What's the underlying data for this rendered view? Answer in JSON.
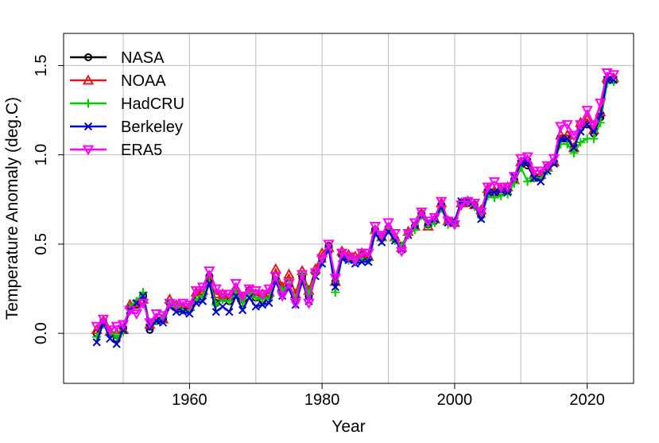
{
  "chart_data": {
    "type": "line",
    "title": "",
    "xlabel": "Year",
    "ylabel": "Temperature Anomaly (deg.C)",
    "xlim": [
      1941,
      2027
    ],
    "ylim": [
      -0.28,
      1.68
    ],
    "xticks": [
      1960,
      1980,
      2000,
      2020
    ],
    "yticks": [
      0.0,
      0.5,
      1.0,
      1.5
    ],
    "xtick_labels": [
      "1960",
      "1980",
      "2000",
      "2020"
    ],
    "ytick_labels": [
      "0.0",
      "0.5",
      "1.0",
      "1.5"
    ],
    "grid": true,
    "legend_position": "top-left",
    "x": [
      1946,
      1947,
      1948,
      1949,
      1950,
      1951,
      1952,
      1953,
      1954,
      1955,
      1956,
      1957,
      1958,
      1959,
      1960,
      1961,
      1962,
      1963,
      1964,
      1965,
      1966,
      1967,
      1968,
      1969,
      1970,
      1971,
      1972,
      1973,
      1974,
      1975,
      1976,
      1977,
      1978,
      1979,
      1980,
      1981,
      1982,
      1983,
      1984,
      1985,
      1986,
      1987,
      1988,
      1989,
      1990,
      1991,
      1992,
      1993,
      1994,
      1995,
      1996,
      1997,
      1998,
      1999,
      2000,
      2001,
      2002,
      2003,
      2004,
      2005,
      2006,
      2007,
      2008,
      2009,
      2010,
      2011,
      2012,
      2013,
      2014,
      2015,
      2016,
      2017,
      2018,
      2019,
      2020,
      2021,
      2022,
      2023,
      2024
    ],
    "series": [
      {
        "name": "NASA",
        "color": "#000000",
        "marker": "circle",
        "values": [
          0.0,
          0.06,
          0.0,
          -0.03,
          0.03,
          0.14,
          0.16,
          0.21,
          0.02,
          0.07,
          0.08,
          0.17,
          0.15,
          0.14,
          0.14,
          0.21,
          0.22,
          0.32,
          0.17,
          0.2,
          0.18,
          0.24,
          0.17,
          0.24,
          0.2,
          0.19,
          0.21,
          0.32,
          0.24,
          0.28,
          0.18,
          0.32,
          0.21,
          0.34,
          0.42,
          0.49,
          0.29,
          0.44,
          0.42,
          0.41,
          0.44,
          0.42,
          0.58,
          0.54,
          0.59,
          0.53,
          0.49,
          0.56,
          0.6,
          0.67,
          0.61,
          0.63,
          0.72,
          0.63,
          0.62,
          0.73,
          0.73,
          0.72,
          0.66,
          0.78,
          0.79,
          0.79,
          0.8,
          0.86,
          0.95,
          0.94,
          0.87,
          0.88,
          0.93,
          0.96,
          1.09,
          1.09,
          1.04,
          1.15,
          1.17,
          1.12,
          1.21,
          1.42,
          1.42
        ]
      },
      {
        "name": "NOAA",
        "color": "#e31a1c",
        "marker": "triangle",
        "values": [
          0.02,
          0.07,
          0.01,
          0.0,
          0.02,
          0.16,
          0.17,
          0.19,
          0.05,
          0.08,
          0.08,
          0.19,
          0.16,
          0.15,
          0.15,
          0.23,
          0.24,
          0.3,
          0.22,
          0.22,
          0.2,
          0.25,
          0.2,
          0.24,
          0.22,
          0.22,
          0.23,
          0.36,
          0.26,
          0.33,
          0.22,
          0.35,
          0.24,
          0.36,
          0.45,
          0.48,
          0.29,
          0.46,
          0.44,
          0.43,
          0.45,
          0.43,
          0.58,
          0.54,
          0.59,
          0.54,
          0.48,
          0.57,
          0.6,
          0.67,
          0.6,
          0.64,
          0.73,
          0.63,
          0.62,
          0.73,
          0.74,
          0.72,
          0.69,
          0.81,
          0.8,
          0.81,
          0.82,
          0.86,
          0.96,
          0.97,
          0.89,
          0.89,
          0.93,
          0.96,
          1.11,
          1.11,
          1.04,
          1.18,
          1.2,
          1.14,
          1.24,
          1.43,
          1.43
        ]
      },
      {
        "name": "HadCRU",
        "color": "#00cc00",
        "marker": "plus",
        "values": [
          -0.02,
          0.05,
          0.0,
          -0.02,
          0.01,
          0.15,
          0.18,
          0.23,
          0.05,
          0.07,
          0.09,
          0.17,
          0.15,
          0.13,
          0.13,
          0.19,
          0.21,
          0.29,
          0.16,
          0.19,
          0.18,
          0.23,
          0.17,
          0.23,
          0.2,
          0.19,
          0.2,
          0.3,
          0.24,
          0.28,
          0.19,
          0.33,
          0.22,
          0.33,
          0.4,
          0.48,
          0.23,
          0.43,
          0.41,
          0.4,
          0.42,
          0.41,
          0.56,
          0.52,
          0.58,
          0.52,
          0.49,
          0.55,
          0.58,
          0.66,
          0.6,
          0.62,
          0.7,
          0.61,
          0.61,
          0.72,
          0.73,
          0.71,
          0.65,
          0.77,
          0.76,
          0.77,
          0.78,
          0.84,
          0.93,
          0.85,
          0.87,
          0.87,
          0.91,
          0.96,
          1.06,
          1.06,
          1.01,
          1.07,
          1.09,
          1.09,
          1.18,
          1.4,
          1.41
        ]
      },
      {
        "name": "Berkeley",
        "color": "#0000cc",
        "marker": "x",
        "values": [
          -0.05,
          0.06,
          -0.03,
          -0.06,
          0.02,
          0.13,
          0.17,
          0.21,
          0.03,
          0.07,
          0.06,
          0.15,
          0.12,
          0.12,
          0.11,
          0.17,
          0.18,
          0.28,
          0.12,
          0.15,
          0.12,
          0.21,
          0.13,
          0.2,
          0.15,
          0.16,
          0.17,
          0.29,
          0.21,
          0.25,
          0.16,
          0.29,
          0.18,
          0.32,
          0.39,
          0.47,
          0.26,
          0.42,
          0.41,
          0.39,
          0.4,
          0.4,
          0.56,
          0.51,
          0.57,
          0.52,
          0.47,
          0.55,
          0.61,
          0.66,
          0.62,
          0.64,
          0.71,
          0.62,
          0.63,
          0.74,
          0.74,
          0.72,
          0.64,
          0.79,
          0.79,
          0.8,
          0.79,
          0.88,
          0.95,
          0.96,
          0.87,
          0.85,
          0.91,
          0.95,
          1.09,
          1.09,
          1.04,
          1.13,
          1.17,
          1.13,
          1.22,
          1.42,
          1.42
        ]
      },
      {
        "name": "ERA5",
        "color": "#ff00ff",
        "marker": "triangle-down",
        "values": [
          0.04,
          0.08,
          0.02,
          0.04,
          0.05,
          0.13,
          0.11,
          0.17,
          0.06,
          0.11,
          0.1,
          0.17,
          0.16,
          0.17,
          0.16,
          0.24,
          0.26,
          0.35,
          0.25,
          0.22,
          0.22,
          0.28,
          0.21,
          0.25,
          0.24,
          0.22,
          0.25,
          0.32,
          0.21,
          0.28,
          0.17,
          0.33,
          0.17,
          0.34,
          0.42,
          0.5,
          0.31,
          0.45,
          0.43,
          0.41,
          0.45,
          0.45,
          0.6,
          0.55,
          0.62,
          0.56,
          0.46,
          0.56,
          0.62,
          0.68,
          0.63,
          0.65,
          0.74,
          0.63,
          0.61,
          0.72,
          0.74,
          0.73,
          0.68,
          0.82,
          0.85,
          0.82,
          0.82,
          0.88,
          0.98,
          0.99,
          0.91,
          0.91,
          0.94,
          0.98,
          1.16,
          1.17,
          1.11,
          1.17,
          1.25,
          1.17,
          1.29,
          1.46,
          1.45
        ]
      }
    ]
  }
}
